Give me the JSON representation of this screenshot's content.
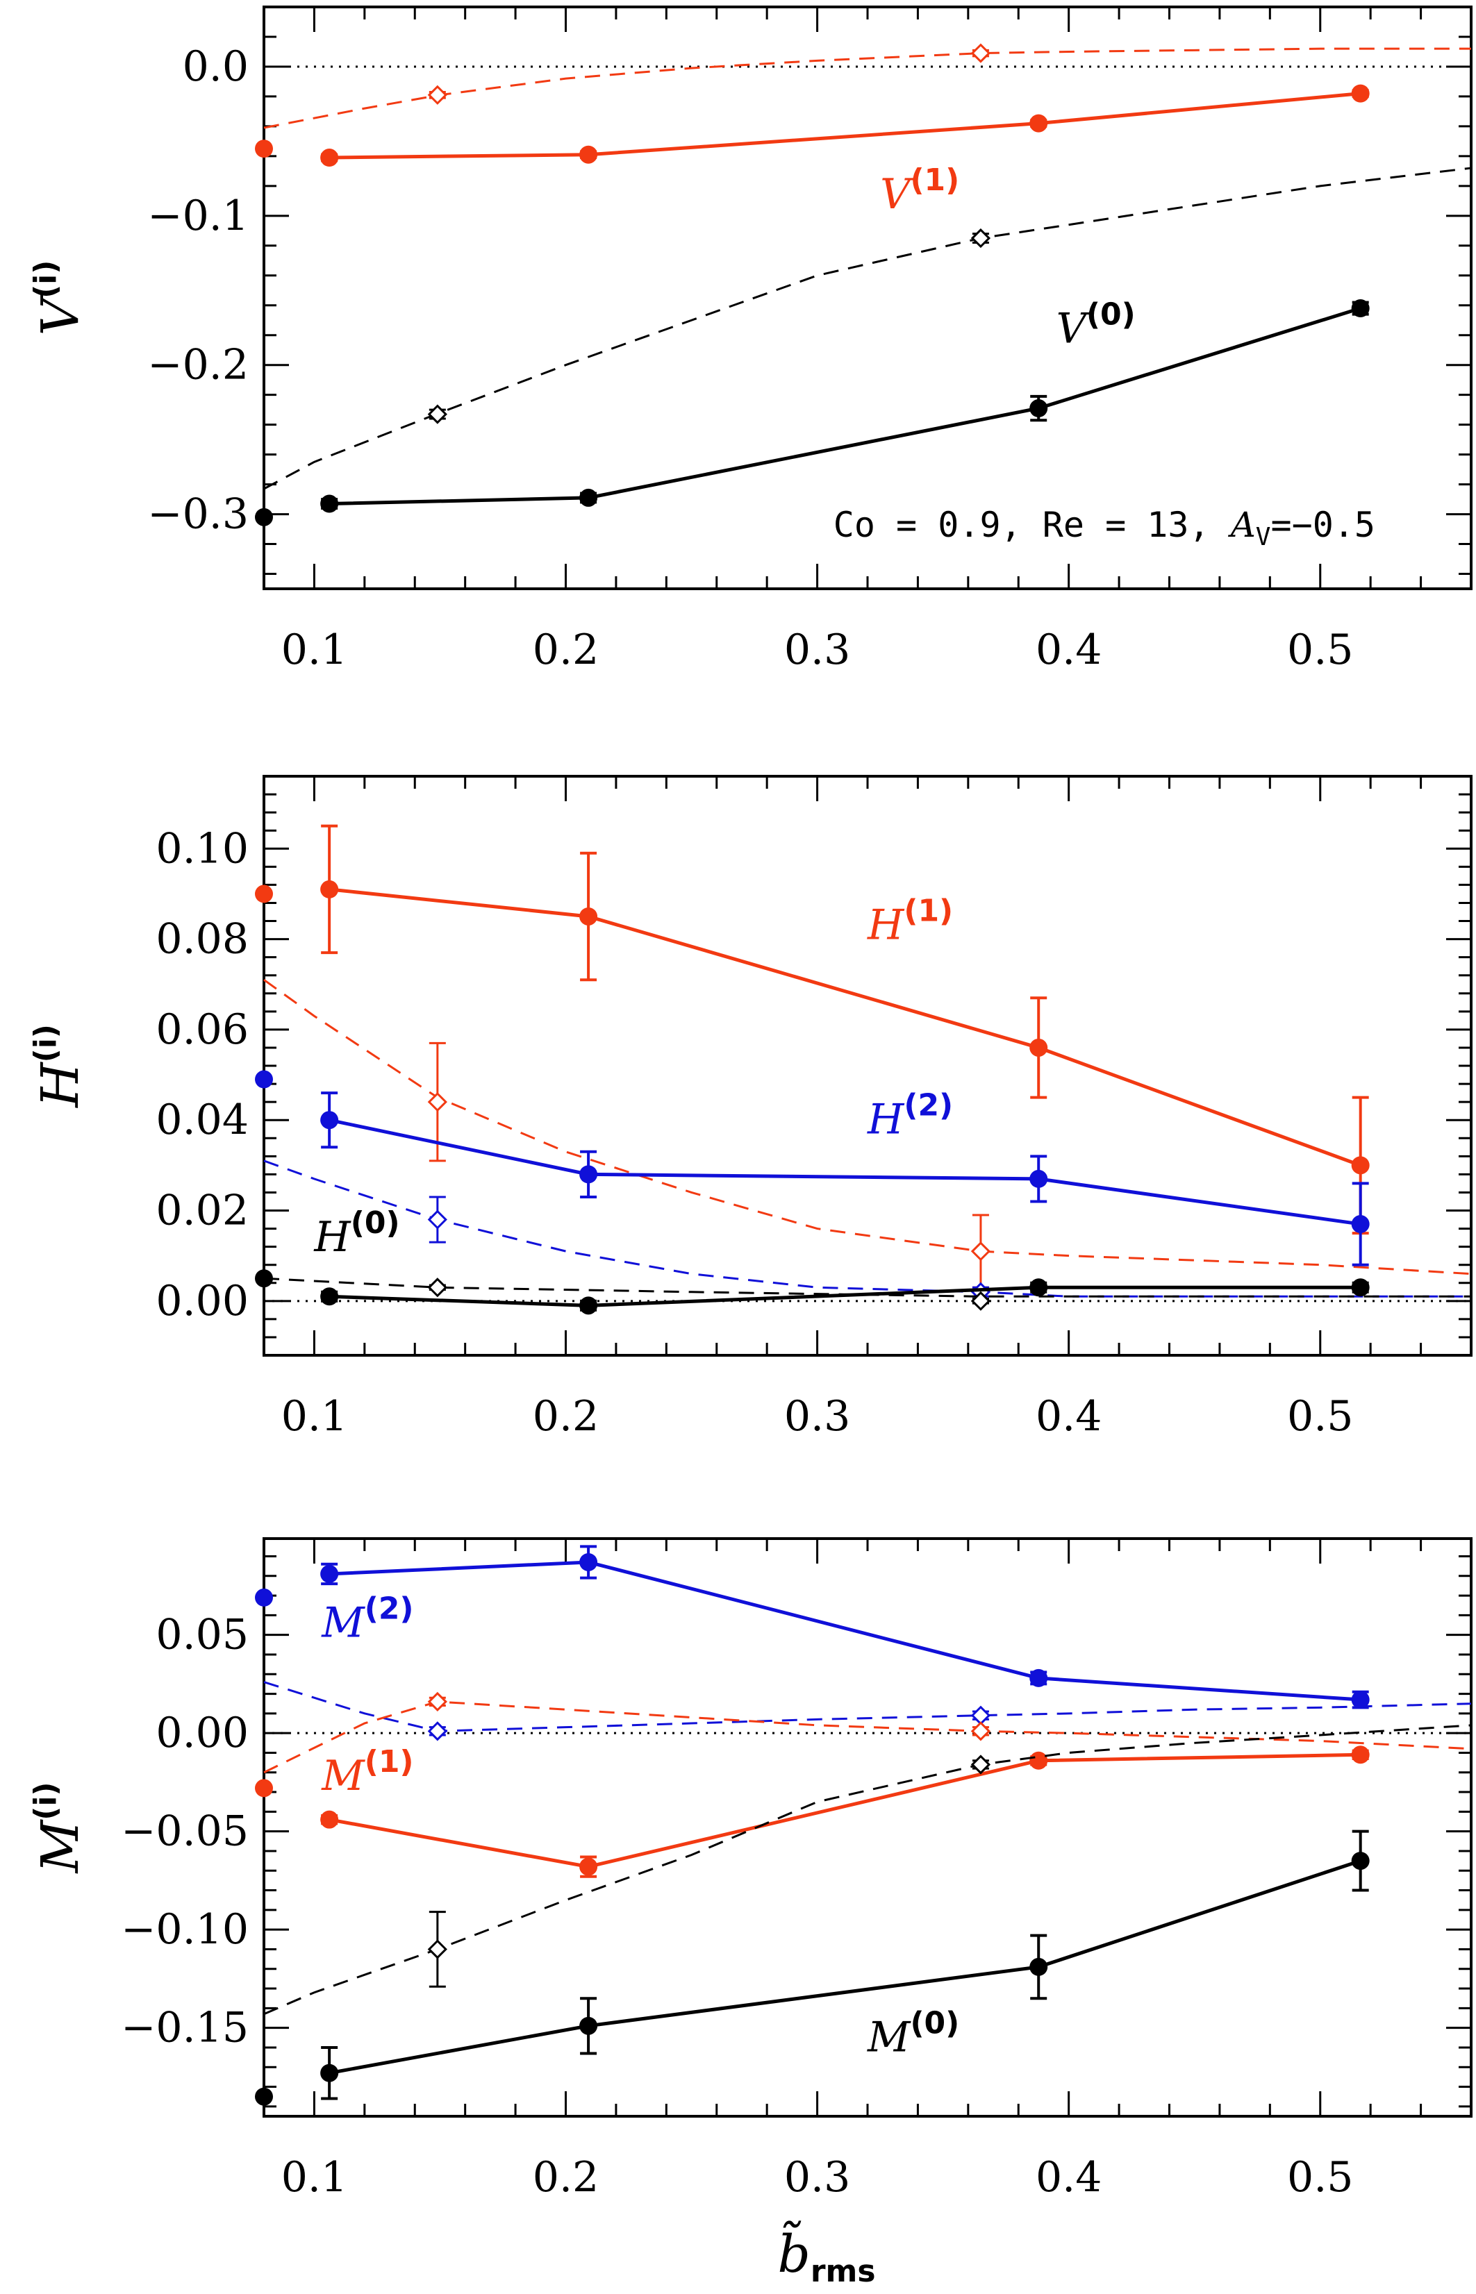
{
  "colors": {
    "black": "#000000",
    "red": "#f23a12",
    "blue": "#1010d8"
  },
  "xaxis": {
    "range": [
      0.08,
      0.56
    ],
    "ticks": [
      "0.1",
      "0.2",
      "0.3",
      "0.4",
      "0.5"
    ],
    "label_main": "b̃",
    "label_sub": "rms"
  },
  "chart_data": [
    {
      "type": "line",
      "panel": "V",
      "ylabel_main": "V",
      "ylabel_sup": "(i)",
      "ylim": [
        -0.35,
        0.04
      ],
      "yticks": [
        "0.0",
        "−0.1",
        "−0.2",
        "−0.3"
      ],
      "ytick_values": [
        0.0,
        -0.1,
        -0.2,
        -0.3
      ],
      "parameter_text": "Co = 0.9, Re = 13, ",
      "parameter_A": "A",
      "parameter_A_sub": "V",
      "parameter_A_value": "=−0.5",
      "series": [
        {
          "name": "V(1) simulation",
          "color": "red",
          "style": "solid",
          "marker": "circle",
          "x": [
            0.106,
            0.209,
            0.388,
            0.516
          ],
          "y": [
            -0.061,
            -0.059,
            -0.038,
            -0.018
          ],
          "err": [
            0.002,
            0.002,
            0.002,
            0.002
          ]
        },
        {
          "name": "V(1) start",
          "color": "red",
          "style": "dot",
          "marker": "circle",
          "x": [
            0.08
          ],
          "y": [
            -0.055
          ],
          "err": [
            0
          ]
        },
        {
          "name": "V(1) model",
          "color": "red",
          "style": "dashed",
          "marker": "none",
          "x": [
            0.08,
            0.12,
            0.15,
            0.2,
            0.25,
            0.3,
            0.365,
            0.4,
            0.45,
            0.5,
            0.56
          ],
          "y": [
            -0.041,
            -0.028,
            -0.019,
            -0.008,
            -0.001,
            0.004,
            0.009,
            0.01,
            0.011,
            0.012,
            0.012
          ],
          "err": []
        },
        {
          "name": "V(1) model points",
          "color": "red",
          "style": "none",
          "marker": "diamond",
          "x": [
            0.149,
            0.365
          ],
          "y": [
            -0.019,
            0.009
          ],
          "err": [
            0.002,
            0.002
          ]
        },
        {
          "name": "V(0) simulation",
          "color": "black",
          "style": "solid",
          "marker": "circle",
          "x": [
            0.106,
            0.209,
            0.388,
            0.516
          ],
          "y": [
            -0.293,
            -0.289,
            -0.229,
            -0.162
          ],
          "err": [
            0.003,
            0.003,
            0.008,
            0.004
          ]
        },
        {
          "name": "V(0) start",
          "color": "black",
          "style": "dot",
          "marker": "circle",
          "x": [
            0.08
          ],
          "y": [
            -0.302
          ],
          "err": [
            0
          ]
        },
        {
          "name": "V(0) model",
          "color": "black",
          "style": "dashed",
          "marker": "none",
          "x": [
            0.08,
            0.1,
            0.15,
            0.2,
            0.25,
            0.3,
            0.365,
            0.4,
            0.45,
            0.5,
            0.56
          ],
          "y": [
            -0.283,
            -0.265,
            -0.232,
            -0.2,
            -0.17,
            -0.14,
            -0.115,
            -0.106,
            -0.093,
            -0.08,
            -0.068
          ],
          "err": []
        },
        {
          "name": "V(0) model points",
          "color": "black",
          "style": "none",
          "marker": "diamond",
          "x": [
            0.149,
            0.365
          ],
          "y": [
            -0.233,
            -0.115
          ],
          "err": [
            0.003,
            0.003
          ]
        }
      ],
      "labels": [
        {
          "main": "V",
          "sup": "(1)",
          "color": "red",
          "x": 0.325,
          "y": -0.095
        },
        {
          "main": "V",
          "sup": "(0)",
          "color": "black",
          "x": 0.395,
          "y": -0.185
        }
      ]
    },
    {
      "type": "line",
      "panel": "H",
      "ylabel_main": "H",
      "ylabel_sup": "(i)",
      "ylim": [
        -0.012,
        0.116
      ],
      "yticks": [
        "0.10",
        "0.08",
        "0.06",
        "0.04",
        "0.02",
        "0.00"
      ],
      "ytick_values": [
        0.1,
        0.08,
        0.06,
        0.04,
        0.02,
        0.0
      ],
      "series": [
        {
          "name": "H(1) simulation",
          "color": "red",
          "style": "solid",
          "marker": "circle",
          "x": [
            0.106,
            0.209,
            0.388,
            0.516
          ],
          "y": [
            0.091,
            0.085,
            0.056,
            0.03
          ],
          "err": [
            0.014,
            0.014,
            0.011,
            0.015
          ]
        },
        {
          "name": "H(1) start",
          "color": "red",
          "style": "dot",
          "marker": "circle",
          "x": [
            0.08
          ],
          "y": [
            0.09
          ],
          "err": [
            0
          ]
        },
        {
          "name": "H(1) model",
          "color": "red",
          "style": "dashed",
          "marker": "none",
          "x": [
            0.08,
            0.1,
            0.149,
            0.2,
            0.25,
            0.3,
            0.365,
            0.4,
            0.45,
            0.5,
            0.56
          ],
          "y": [
            0.071,
            0.063,
            0.045,
            0.033,
            0.024,
            0.016,
            0.011,
            0.01,
            0.009,
            0.008,
            0.006
          ],
          "err": []
        },
        {
          "name": "H(1) model points",
          "color": "red",
          "style": "none",
          "marker": "diamond",
          "x": [
            0.149,
            0.365
          ],
          "y": [
            0.044,
            0.011
          ],
          "err": [
            0.013,
            0.008
          ]
        },
        {
          "name": "H(2) simulation",
          "color": "blue",
          "style": "solid",
          "marker": "circle",
          "x": [
            0.106,
            0.209,
            0.388,
            0.516
          ],
          "y": [
            0.04,
            0.028,
            0.027,
            0.017
          ],
          "err": [
            0.006,
            0.005,
            0.005,
            0.009
          ]
        },
        {
          "name": "H(2) start",
          "color": "blue",
          "style": "dot",
          "marker": "circle",
          "x": [
            0.08
          ],
          "y": [
            0.049
          ],
          "err": [
            0
          ]
        },
        {
          "name": "H(2) model",
          "color": "blue",
          "style": "dashed",
          "marker": "none",
          "x": [
            0.08,
            0.1,
            0.149,
            0.2,
            0.25,
            0.3,
            0.365,
            0.4,
            0.5,
            0.56
          ],
          "y": [
            0.031,
            0.027,
            0.018,
            0.011,
            0.006,
            0.003,
            0.002,
            0.001,
            0.001,
            0.001
          ],
          "err": []
        },
        {
          "name": "H(2) model points",
          "color": "blue",
          "style": "none",
          "marker": "diamond",
          "x": [
            0.149,
            0.365
          ],
          "y": [
            0.018,
            0.002
          ],
          "err": [
            0.005,
            0.001
          ]
        },
        {
          "name": "H(0) simulation",
          "color": "black",
          "style": "solid",
          "marker": "circle",
          "x": [
            0.106,
            0.209,
            0.388,
            0.516
          ],
          "y": [
            0.001,
            -0.001,
            0.003,
            0.003
          ],
          "err": [
            0.001,
            0.001,
            0.001,
            0.001
          ]
        },
        {
          "name": "H(0) start",
          "color": "black",
          "style": "dot",
          "marker": "circle",
          "x": [
            0.08
          ],
          "y": [
            0.005
          ],
          "err": [
            0
          ]
        },
        {
          "name": "H(0) model",
          "color": "black",
          "style": "dashed",
          "marker": "none",
          "x": [
            0.08,
            0.149,
            0.25,
            0.365,
            0.45,
            0.56
          ],
          "y": [
            0.005,
            0.003,
            0.002,
            0.001,
            0.001,
            0.001
          ],
          "err": []
        },
        {
          "name": "H(0) model points",
          "color": "black",
          "style": "none",
          "marker": "diamond",
          "x": [
            0.149,
            0.365
          ],
          "y": [
            0.003,
            0.0
          ],
          "err": [
            0.0005,
            0.0005
          ]
        }
      ],
      "labels": [
        {
          "main": "H",
          "sup": "(1)",
          "color": "red",
          "x": 0.32,
          "y": 0.08
        },
        {
          "main": "H",
          "sup": "(2)",
          "color": "blue",
          "x": 0.32,
          "y": 0.037
        },
        {
          "main": "H",
          "sup": "(0)",
          "color": "black",
          "x": 0.1,
          "y": 0.011
        }
      ]
    },
    {
      "type": "line",
      "panel": "M",
      "ylabel_main": "M",
      "ylabel_sup": "(i)",
      "ylim": [
        -0.195,
        0.099
      ],
      "yticks": [
        "0.05",
        "0.00",
        "−0.05",
        "−0.10",
        "−0.15"
      ],
      "ytick_values": [
        0.05,
        0.0,
        -0.05,
        -0.1,
        -0.15
      ],
      "series": [
        {
          "name": "M(2) simulation",
          "color": "blue",
          "style": "solid",
          "marker": "circle",
          "x": [
            0.106,
            0.209,
            0.388,
            0.516
          ],
          "y": [
            0.081,
            0.087,
            0.028,
            0.017
          ],
          "err": [
            0.005,
            0.008,
            0.003,
            0.004
          ]
        },
        {
          "name": "M(2) start",
          "color": "blue",
          "style": "dot",
          "marker": "circle",
          "x": [
            0.08
          ],
          "y": [
            0.069
          ],
          "err": [
            0
          ]
        },
        {
          "name": "M(2) model",
          "color": "blue",
          "style": "dashed",
          "marker": "none",
          "x": [
            0.08,
            0.12,
            0.149,
            0.2,
            0.25,
            0.3,
            0.365,
            0.4,
            0.45,
            0.5,
            0.56
          ],
          "y": [
            0.026,
            0.01,
            0.001,
            0.003,
            0.005,
            0.007,
            0.009,
            0.01,
            0.012,
            0.013,
            0.015
          ],
          "err": []
        },
        {
          "name": "M(2) model points",
          "color": "blue",
          "style": "none",
          "marker": "diamond",
          "x": [
            0.149,
            0.365
          ],
          "y": [
            0.001,
            0.009
          ],
          "err": [
            0.002,
            0.002
          ]
        },
        {
          "name": "M(1) model",
          "color": "red",
          "style": "dashed",
          "marker": "none",
          "x": [
            0.08,
            0.12,
            0.149,
            0.2,
            0.25,
            0.3,
            0.365,
            0.4,
            0.45,
            0.5,
            0.56
          ],
          "y": [
            -0.02,
            0.005,
            0.016,
            0.012,
            0.008,
            0.004,
            0.001,
            0.0,
            -0.002,
            -0.004,
            -0.008
          ],
          "err": []
        },
        {
          "name": "M(1) model points",
          "color": "red",
          "style": "none",
          "marker": "diamond",
          "x": [
            0.149,
            0.365
          ],
          "y": [
            0.016,
            0.001
          ],
          "err": [
            0.002,
            0.002
          ]
        },
        {
          "name": "M(1) simulation",
          "color": "red",
          "style": "solid",
          "marker": "circle",
          "x": [
            0.106,
            0.209,
            0.388,
            0.516
          ],
          "y": [
            -0.044,
            -0.068,
            -0.014,
            -0.011
          ],
          "err": [
            0.002,
            0.005,
            0.002,
            0.002
          ]
        },
        {
          "name": "M(1) start",
          "color": "red",
          "style": "dot",
          "marker": "circle",
          "x": [
            0.08
          ],
          "y": [
            -0.028
          ],
          "err": [
            0
          ]
        },
        {
          "name": "M(0) model",
          "color": "black",
          "style": "dashed",
          "marker": "none",
          "x": [
            0.08,
            0.1,
            0.149,
            0.2,
            0.25,
            0.3,
            0.365,
            0.4,
            0.45,
            0.5,
            0.56
          ],
          "y": [
            -0.143,
            -0.132,
            -0.11,
            -0.085,
            -0.062,
            -0.035,
            -0.016,
            -0.01,
            -0.005,
            -0.001,
            0.004
          ],
          "err": []
        },
        {
          "name": "M(0) model points",
          "color": "black",
          "style": "none",
          "marker": "diamond",
          "x": [
            0.149,
            0.365
          ],
          "y": [
            -0.11,
            -0.016
          ],
          "err": [
            0.019,
            0.002
          ]
        },
        {
          "name": "M(0) simulation",
          "color": "black",
          "style": "solid",
          "marker": "circle",
          "x": [
            0.106,
            0.209,
            0.388,
            0.516
          ],
          "y": [
            -0.173,
            -0.149,
            -0.119,
            -0.065
          ],
          "err": [
            0.013,
            0.014,
            0.016,
            0.015
          ]
        },
        {
          "name": "M(0) start",
          "color": "black",
          "style": "dot",
          "marker": "circle",
          "x": [
            0.08
          ],
          "y": [
            -0.185
          ],
          "err": [
            0
          ]
        }
      ],
      "labels": [
        {
          "main": "M",
          "sup": "(2)",
          "color": "blue",
          "x": 0.103,
          "y": 0.049
        },
        {
          "main": "M",
          "sup": "(1)",
          "color": "red",
          "x": 0.103,
          "y": -0.029
        },
        {
          "main": "M",
          "sup": "(0)",
          "color": "black",
          "x": 0.32,
          "y": -0.162
        }
      ]
    }
  ]
}
